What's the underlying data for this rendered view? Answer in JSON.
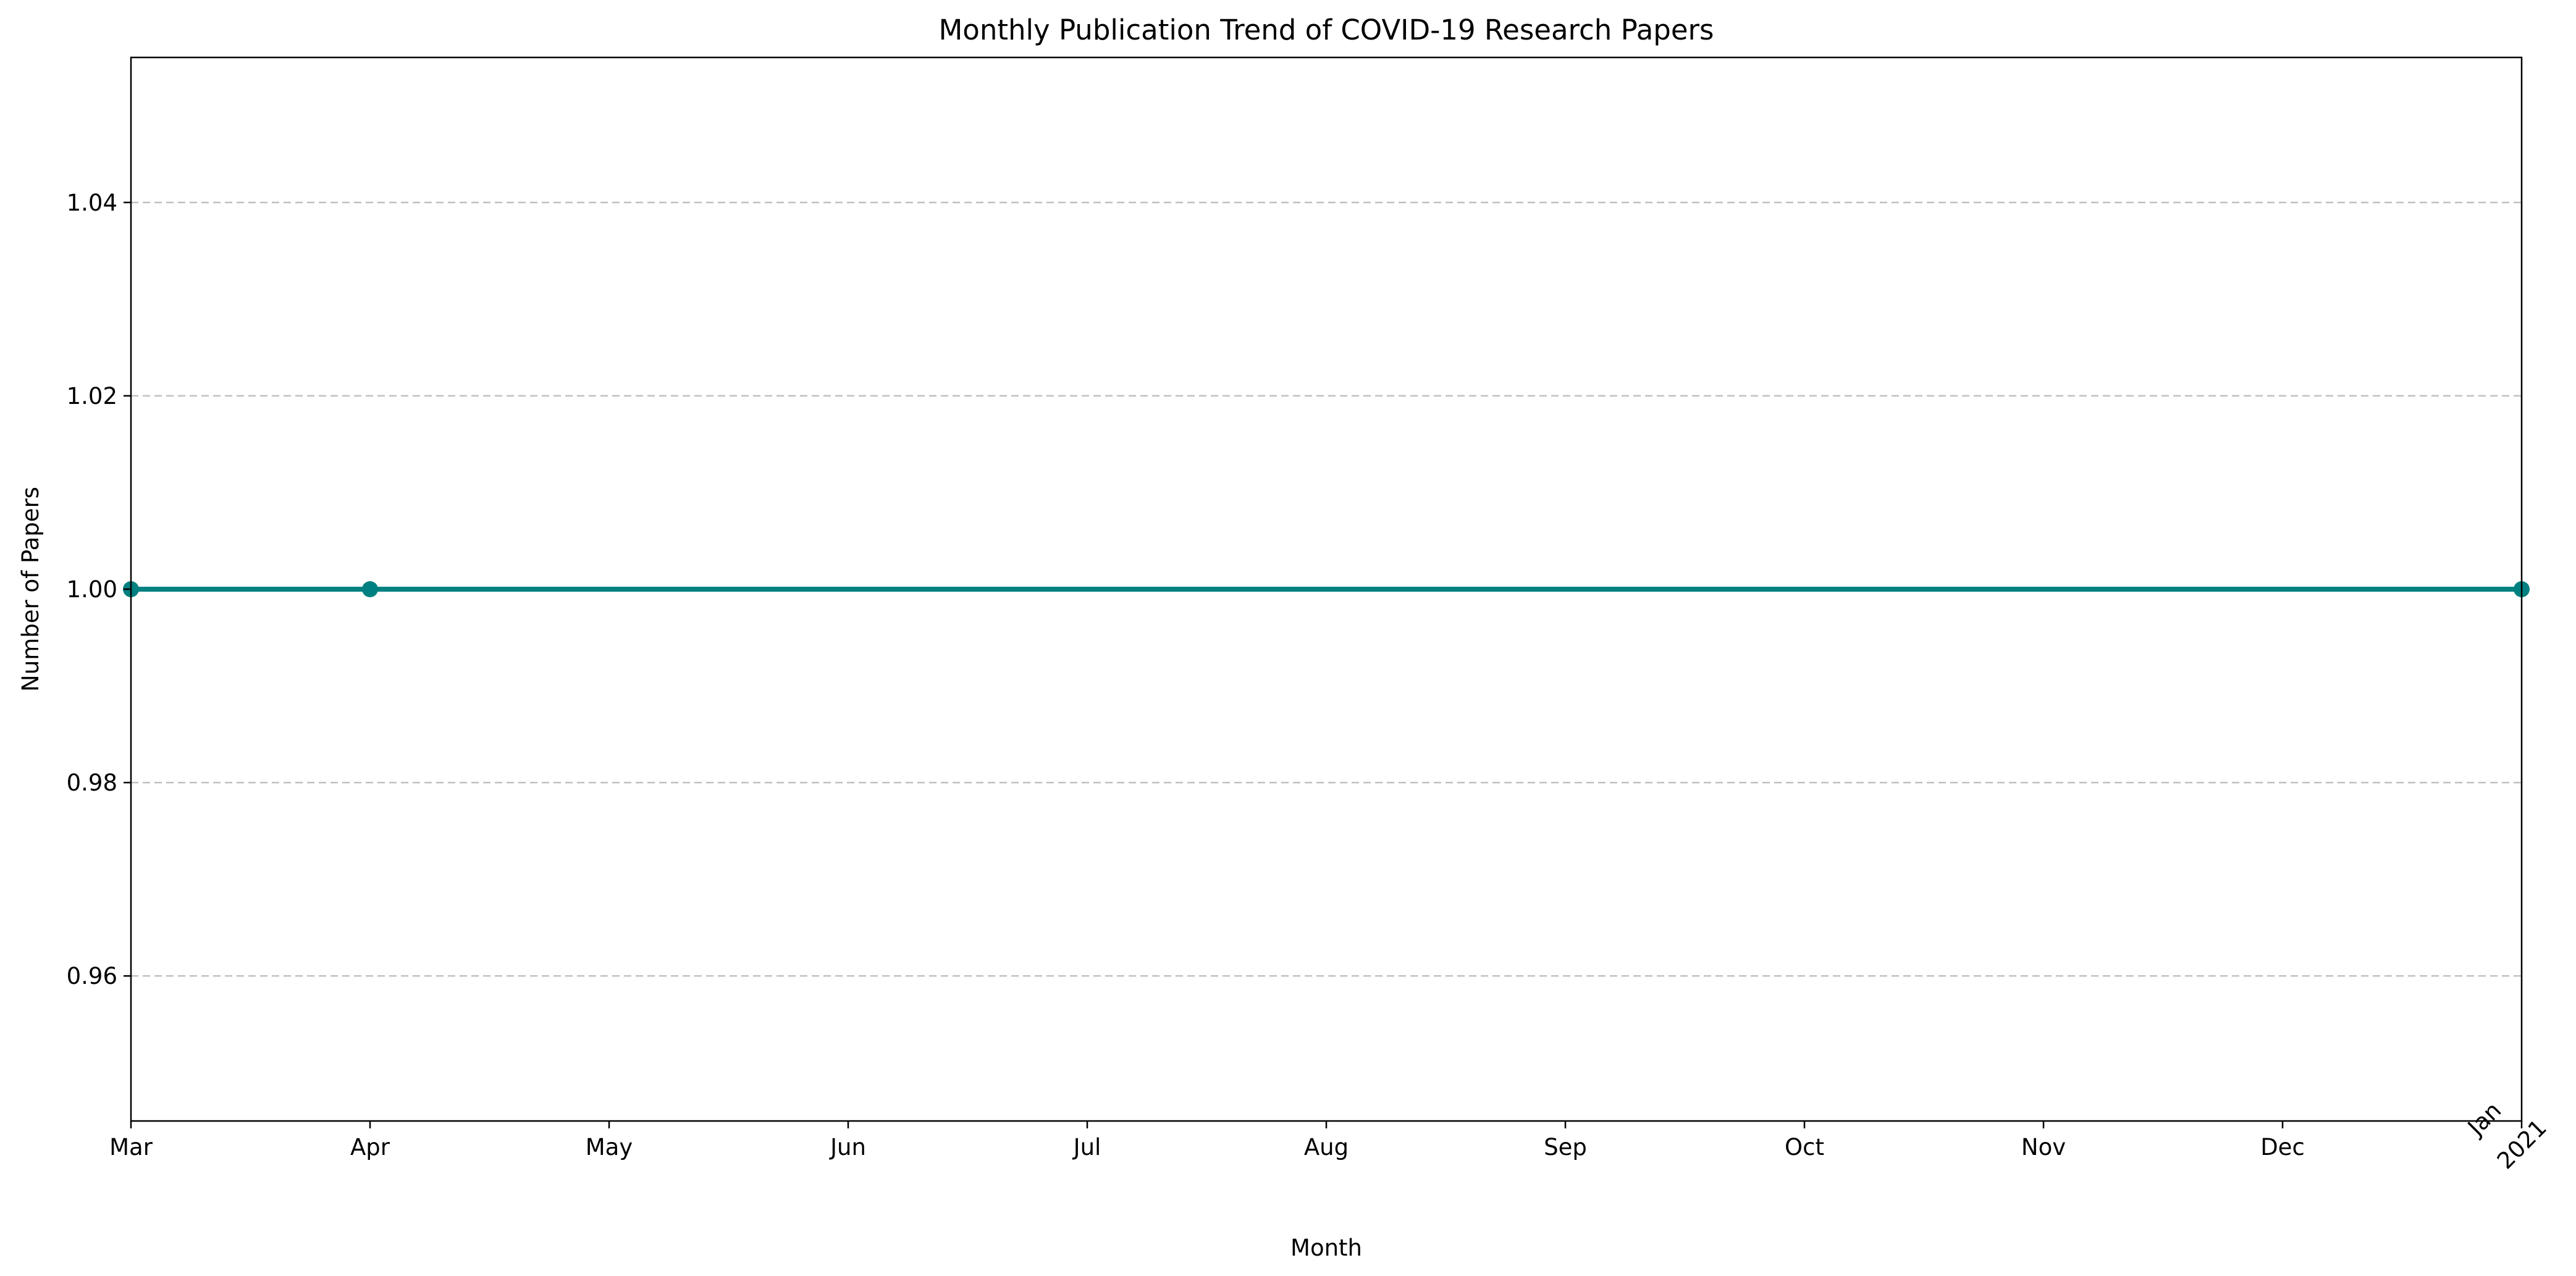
{
  "chart_data": {
    "type": "line",
    "title": "Monthly Publication Trend of COVID-19 Research Papers",
    "xlabel": "Month",
    "ylabel": "Number of Papers",
    "x_axis_type": "date",
    "xlim": [
      "2020-03",
      "2021-01"
    ],
    "x_ticks": [
      {
        "date": "2020-03",
        "label": [
          "Mar"
        ]
      },
      {
        "date": "2020-04",
        "label": [
          "Apr"
        ]
      },
      {
        "date": "2020-05",
        "label": [
          "May"
        ]
      },
      {
        "date": "2020-06",
        "label": [
          "Jun"
        ]
      },
      {
        "date": "2020-07",
        "label": [
          "Jul"
        ]
      },
      {
        "date": "2020-08",
        "label": [
          "Aug"
        ]
      },
      {
        "date": "2020-09",
        "label": [
          "Sep"
        ]
      },
      {
        "date": "2020-10",
        "label": [
          "Oct"
        ]
      },
      {
        "date": "2020-11",
        "label": [
          "Nov"
        ]
      },
      {
        "date": "2020-12",
        "label": [
          "Dec"
        ]
      },
      {
        "date": "2021-01",
        "label": [
          "Jan",
          "2021"
        ]
      }
    ],
    "ylim": [
      0.945,
      1.055
    ],
    "y_ticks": [
      "0.96",
      "0.98",
      "1.00",
      "1.02",
      "1.04"
    ],
    "grid": "y-axis, dashed",
    "series": [
      {
        "color": "#008080",
        "marker": "circle",
        "points": [
          {
            "x": "2020-03",
            "y": 1
          },
          {
            "x": "2020-04",
            "y": 1
          },
          {
            "x": "2021-01",
            "y": 1
          }
        ]
      }
    ]
  }
}
